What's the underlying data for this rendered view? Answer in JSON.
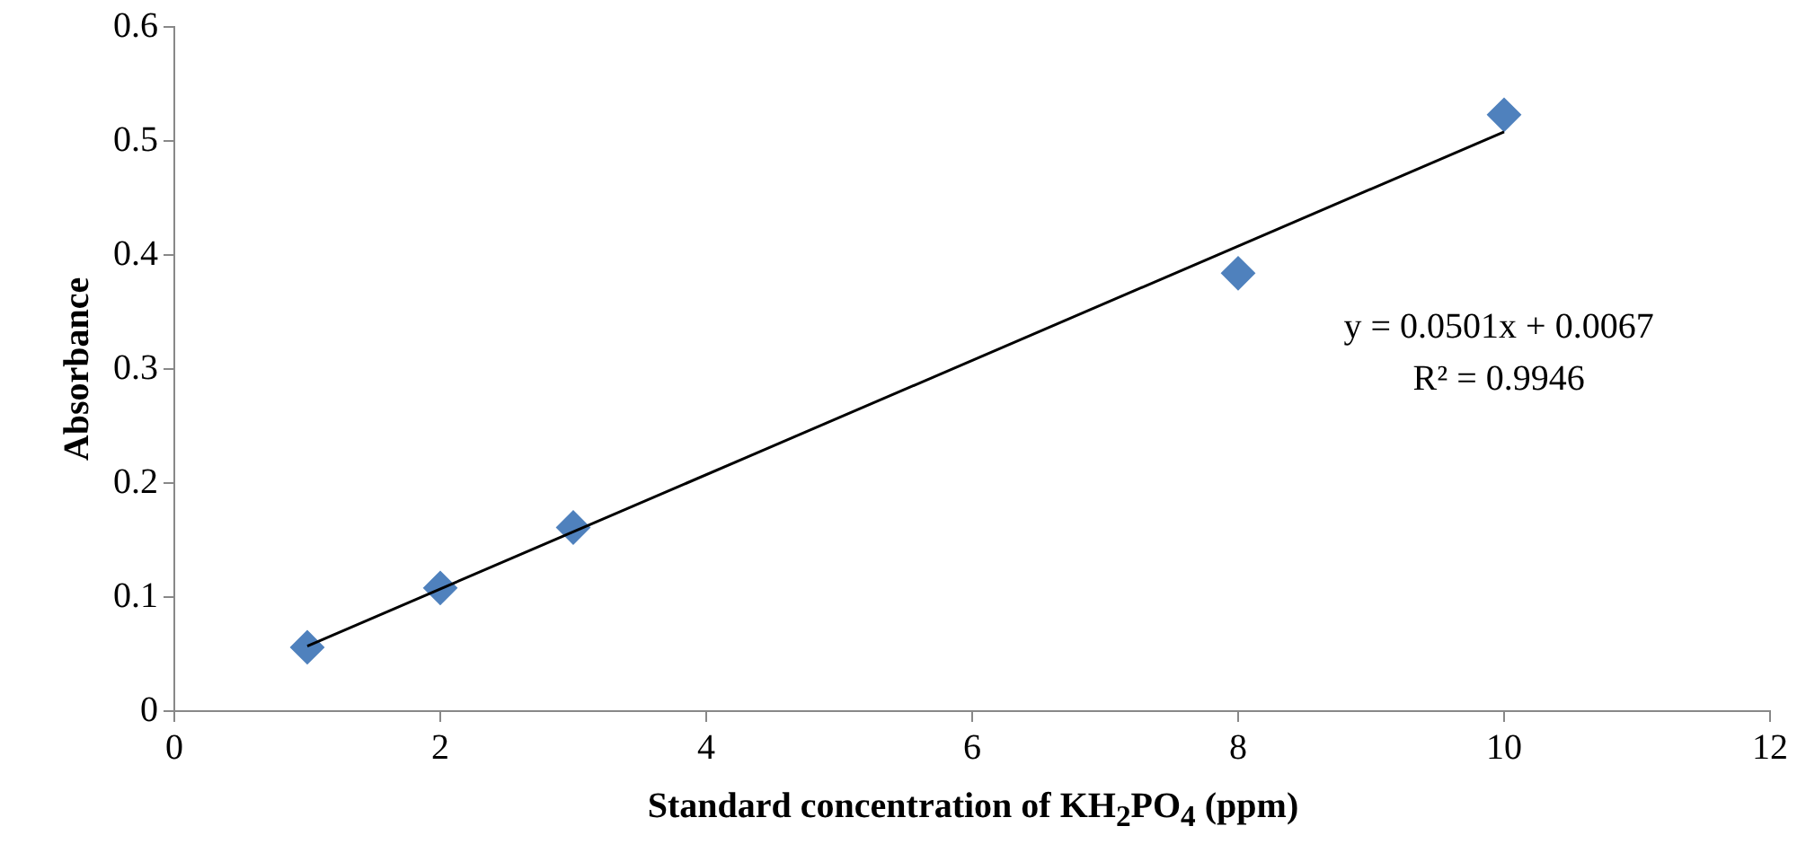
{
  "chart_data": {
    "type": "scatter",
    "xlabel": "Standard concentration of KH$_{2}$PO$_{4}$ (ppm)",
    "ylabel": "Absorbance",
    "series": [
      {
        "type": "scatter",
        "color": "#4f81bd",
        "x": [
          1,
          2,
          3,
          8,
          10
        ],
        "values": [
          0.056,
          0.108,
          0.161,
          0.384,
          0.523
        ],
        "marker": "diamond"
      },
      {
        "type": "line",
        "color": "#000000",
        "x": [
          1,
          10
        ],
        "values": [
          0.057,
          0.508
        ],
        "marker": "none"
      }
    ],
    "annotations": [
      "y = 0.0501x + 0.0067",
      "R² = 0.9946"
    ],
    "xlim": [
      0,
      12
    ],
    "xticks": [
      0,
      2,
      4,
      6,
      8,
      10,
      12
    ],
    "ylim": [
      0,
      0.6
    ],
    "yticks": [
      0,
      0.1,
      0.2,
      0.3,
      0.4,
      0.5,
      0.6
    ],
    "grid": false,
    "legend": false
  }
}
